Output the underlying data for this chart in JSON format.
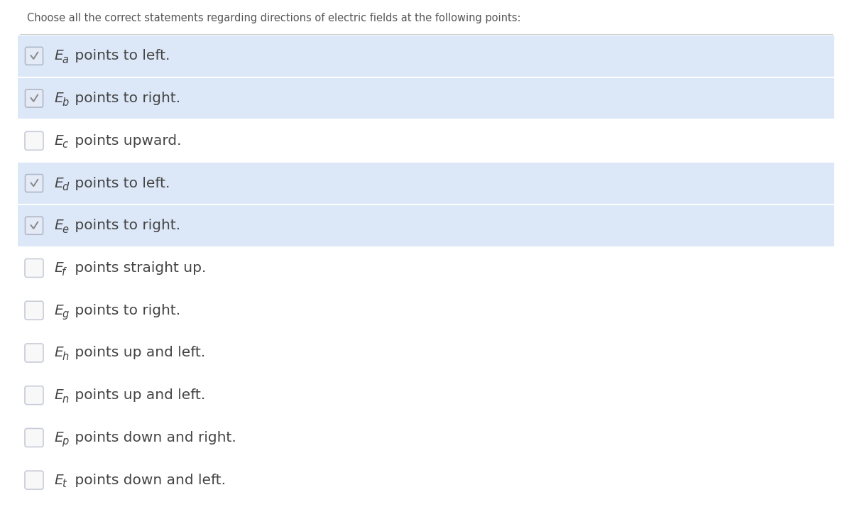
{
  "title": "Choose all the correct statements regarding directions of electric fields at the following points:",
  "title_fontsize": 10.5,
  "bg_color": "#ffffff",
  "highlighted_bg": "#dce8f8",
  "options": [
    {
      "label": "E",
      "subscript": "a",
      "text": " points to left.",
      "checked": true
    },
    {
      "label": "E",
      "subscript": "b",
      "text": " points to right.",
      "checked": true
    },
    {
      "label": "E",
      "subscript": "c",
      "text": " points upward.",
      "checked": false
    },
    {
      "label": "E",
      "subscript": "d",
      "text": " points to left.",
      "checked": true
    },
    {
      "label": "E",
      "subscript": "e",
      "text": " points to right.",
      "checked": true
    },
    {
      "label": "E",
      "subscript": "f",
      "text": " points straight up.",
      "checked": false
    },
    {
      "label": "E",
      "subscript": "g",
      "text": " points to right.",
      "checked": false
    },
    {
      "label": "E",
      "subscript": "h",
      "text": " points up and left.",
      "checked": false
    },
    {
      "label": "E",
      "subscript": "n",
      "text": " points up and left.",
      "checked": false
    },
    {
      "label": "E",
      "subscript": "p",
      "text": " points down and right.",
      "checked": false
    },
    {
      "label": "E",
      "subscript": "t",
      "text": " points down and left.",
      "checked": false
    }
  ],
  "highlighted_rows": [
    0,
    1,
    3,
    4
  ],
  "check_color": "#888888",
  "check_border": "#b0b8c8",
  "text_color": "#444444",
  "text_fontsize": 14.5,
  "sub_fontsize": 10.5,
  "figsize": [
    12.0,
    7.14
  ],
  "dpi": 100
}
